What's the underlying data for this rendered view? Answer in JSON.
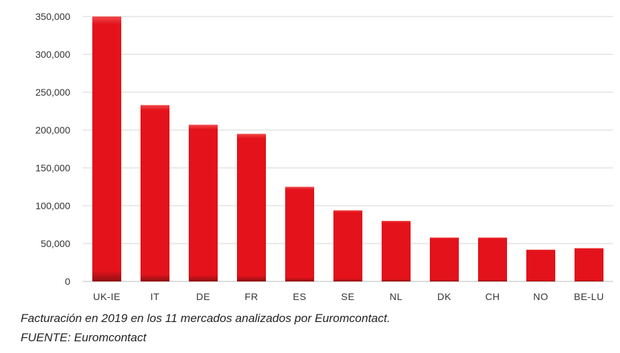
{
  "chart_data": {
    "type": "bar",
    "categories": [
      "UK-IE",
      "IT",
      "DE",
      "FR",
      "ES",
      "SE",
      "NL",
      "DK",
      "CH",
      "NO",
      "BE-LU"
    ],
    "values": [
      350000,
      233000,
      207000,
      195000,
      125000,
      94000,
      80000,
      58000,
      58000,
      42000,
      44000
    ],
    "yticks": [
      "0",
      "50,000",
      "100,000",
      "150,000",
      "200,000",
      "250,000",
      "300,000",
      "350,000"
    ],
    "ylim": [
      0,
      350000
    ],
    "grid": true,
    "legend": "none",
    "bar_color": "#e3121b",
    "bar_dark_color": "#8e0f12"
  },
  "caption": "Facturación en 2019 en los 11 mercados analizados por Euromcontact.",
  "source": "FUENTE: Euromcontact"
}
